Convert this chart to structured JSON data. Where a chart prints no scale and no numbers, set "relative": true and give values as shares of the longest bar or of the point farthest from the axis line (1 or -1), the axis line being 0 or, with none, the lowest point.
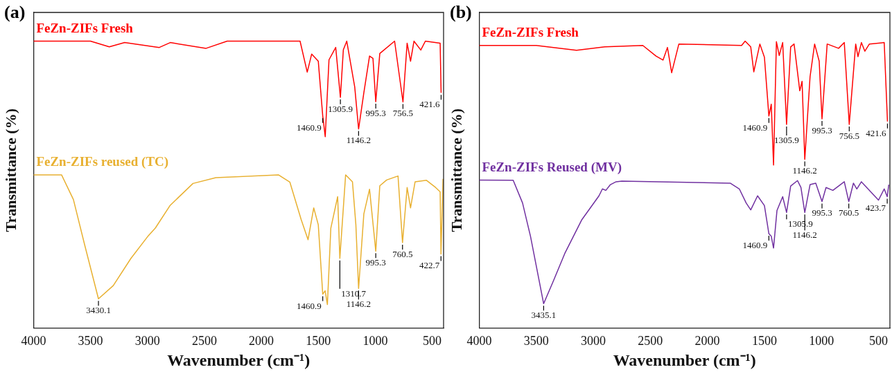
{
  "chart_data": [
    {
      "type": "line",
      "title": "(a)",
      "xlabel": "Wavenumber (cm⁻¹)",
      "ylabel": "Transmittance (%)",
      "relative": true,
      "tick_labels": "x",
      "legend": false,
      "grid": false,
      "xlim": [
        4000,
        400
      ],
      "xticks": [
        4000,
        3500,
        3000,
        2500,
        2000,
        1500,
        1000,
        500
      ],
      "series": [
        {
          "name": "FeZn-ZIFs Fresh",
          "color": "#ff0000",
          "x": [
            4000,
            3500,
            3335,
            3200,
            2896,
            2800,
            2485,
            2300,
            1800,
            1660,
            1597,
            1558,
            1500,
            1460.9,
            1439,
            1406,
            1347,
            1305.9,
            1280,
            1250,
            1180,
            1146.2,
            1100,
            1050,
            1020,
            995.3,
            960,
            830,
            756.5,
            720,
            690,
            660,
            600,
            560,
            430,
            421.6
          ],
          "values": [
            1,
            1,
            0.98,
            0.995,
            0.978,
            0.995,
            0.975,
            1,
            1,
            1,
            0.892,
            0.955,
            0.93,
            0.739,
            0.667,
            0.935,
            0.978,
            0.804,
            0.97,
            1,
            0.84,
            0.694,
            0.82,
            0.948,
            0.94,
            0.789,
            0.957,
            1,
            0.788,
            0.993,
            0.93,
            1,
            0.969,
            1,
            0.993,
            0.82
          ]
        },
        {
          "name": "FeZn-ZIFs reused (TC)",
          "color": "#e8b030",
          "x": [
            4000,
            3754,
            3650,
            3550,
            3430.1,
            3300,
            3145,
            3000,
            2930,
            2800,
            2600,
            2400,
            1850,
            1750,
            1650,
            1590,
            1540,
            1500,
            1460.9,
            1440,
            1420,
            1390,
            1330,
            1310.7,
            1260,
            1200,
            1170,
            1146.2,
            1100,
            1050,
            995.3,
            960,
            900,
            800,
            760.5,
            720,
            690,
            650,
            550,
            470,
            430,
            422.7,
            405
          ],
          "values": [
            0.534,
            0.534,
            0.448,
            0.288,
            0.102,
            0.148,
            0.243,
            0.318,
            0.349,
            0.428,
            0.504,
            0.524,
            0.534,
            0.509,
            0.378,
            0.308,
            0.419,
            0.36,
            0.118,
            0.13,
            0.082,
            0.348,
            0.458,
            0.243,
            0.534,
            0.51,
            0.36,
            0.138,
            0.398,
            0.484,
            0.268,
            0.496,
            0.516,
            0.53,
            0.298,
            0.49,
            0.419,
            0.51,
            0.515,
            0.49,
            0.475,
            0.258,
            0.52
          ]
        }
      ],
      "annotations": [
        {
          "text": "1460.9",
          "x": 1460.9,
          "y": 0.739
        },
        {
          "text": "1305.9",
          "x": 1305.9,
          "y": 0.804
        },
        {
          "text": "1146.2",
          "x": 1146.2,
          "y": 0.694
        },
        {
          "text": "995.3",
          "x": 995.3,
          "y": 0.789
        },
        {
          "text": "756.5",
          "x": 756.5,
          "y": 0.788
        },
        {
          "text": "421.6",
          "x": 421.6,
          "y": 0.82
        },
        {
          "text": "3430.1",
          "x": 3430.1,
          "y": 0.102
        },
        {
          "text": "1460.9",
          "x": 1460.9,
          "y": 0.118
        },
        {
          "text": "1310.7",
          "x": 1310.7,
          "y": 0.243
        },
        {
          "text": "1146.2",
          "x": 1146.2,
          "y": 0.138
        },
        {
          "text": "995.3",
          "x": 995.3,
          "y": 0.268
        },
        {
          "text": "760.5",
          "x": 760.5,
          "y": 0.298
        },
        {
          "text": "422.7",
          "x": 422.7,
          "y": 0.258
        }
      ]
    },
    {
      "type": "line",
      "title": "(b)",
      "xlabel": "Wavenumber (cm⁻¹)",
      "ylabel": "Transmittance (%)",
      "relative": true,
      "tick_labels": "x",
      "legend": false,
      "grid": false,
      "xlim": [
        4000,
        400
      ],
      "xticks": [
        4000,
        3500,
        3000,
        2500,
        2000,
        1500,
        1000,
        500
      ],
      "series": [
        {
          "name": "FeZn-ZIFs Fresh",
          "color": "#ff0000",
          "x": [
            4000,
            3500,
            3147,
            2900,
            2566,
            2450,
            2389,
            2350,
            2313,
            2250,
            1700,
            1669,
            1620,
            1593,
            1540,
            1500,
            1460.9,
            1440,
            1420,
            1395,
            1370,
            1340,
            1305.9,
            1270,
            1240,
            1190,
            1170,
            1146.2,
            1100,
            1060,
            1020,
            995.3,
            950,
            850,
            800,
            756.5,
            700,
            680,
            650,
            620,
            580,
            450,
            421.6
          ],
          "values": [
            0.985,
            0.985,
            0.968,
            0.98,
            0.985,
            0.948,
            0.934,
            0.978,
            0.89,
            0.99,
            0.985,
            1,
            0.98,
            0.893,
            0.99,
            0.944,
            0.739,
            0.78,
            0.568,
            0.998,
            0.95,
            0.995,
            0.71,
            0.98,
            0.99,
            0.827,
            0.86,
            0.588,
            0.876,
            0.99,
            0.93,
            0.729,
            0.99,
            0.975,
            0.995,
            0.71,
            0.99,
            0.946,
            0.995,
            0.965,
            0.99,
            0.995,
            0.72
          ]
        },
        {
          "name": "FeZn-ZIFs Reused (MV)",
          "color": "#7030a0",
          "x": [
            4000,
            3702,
            3620,
            3550,
            3435.1,
            3350,
            3250,
            3100,
            2950,
            2920,
            2890,
            2850,
            2800,
            2750,
            1800,
            1720,
            1660,
            1620,
            1560,
            1500,
            1460.9,
            1440,
            1420,
            1390,
            1340,
            1305.9,
            1270,
            1210,
            1180,
            1146.2,
            1100,
            1050,
            995.3,
            960,
            900,
            800,
            760.5,
            720,
            690,
            650,
            500,
            450,
            423.7,
            410
          ],
          "values": [
            0.516,
            0.515,
            0.436,
            0.319,
            0.085,
            0.164,
            0.26,
            0.378,
            0.461,
            0.485,
            0.48,
            0.5,
            0.51,
            0.512,
            0.505,
            0.485,
            0.436,
            0.412,
            0.461,
            0.427,
            0.329,
            0.32,
            0.279,
            0.41,
            0.458,
            0.403,
            0.495,
            0.514,
            0.49,
            0.403,
            0.5,
            0.505,
            0.441,
            0.49,
            0.48,
            0.51,
            0.441,
            0.505,
            0.485,
            0.51,
            0.446,
            0.485,
            0.458,
            0.5
          ]
        }
      ],
      "annotations": [
        {
          "text": "1460.9",
          "x": 1460.9,
          "y": 0.739
        },
        {
          "text": "1305.9",
          "x": 1305.9,
          "y": 0.71
        },
        {
          "text": "1146.2",
          "x": 1146.2,
          "y": 0.588
        },
        {
          "text": "995.3",
          "x": 995.3,
          "y": 0.729
        },
        {
          "text": "756.5",
          "x": 756.5,
          "y": 0.71
        },
        {
          "text": "421.6",
          "x": 421.6,
          "y": 0.72
        },
        {
          "text": "3435.1",
          "x": 3435.1,
          "y": 0.085
        },
        {
          "text": "1460.9",
          "x": 1460.9,
          "y": 0.329
        },
        {
          "text": "1305.9",
          "x": 1305.9,
          "y": 0.403
        },
        {
          "text": "1146.2",
          "x": 1146.2,
          "y": 0.403
        },
        {
          "text": "995.3",
          "x": 995.3,
          "y": 0.441
        },
        {
          "text": "760.5",
          "x": 760.5,
          "y": 0.441
        },
        {
          "text": "423.7",
          "x": 423.7,
          "y": 0.458
        }
      ]
    }
  ]
}
